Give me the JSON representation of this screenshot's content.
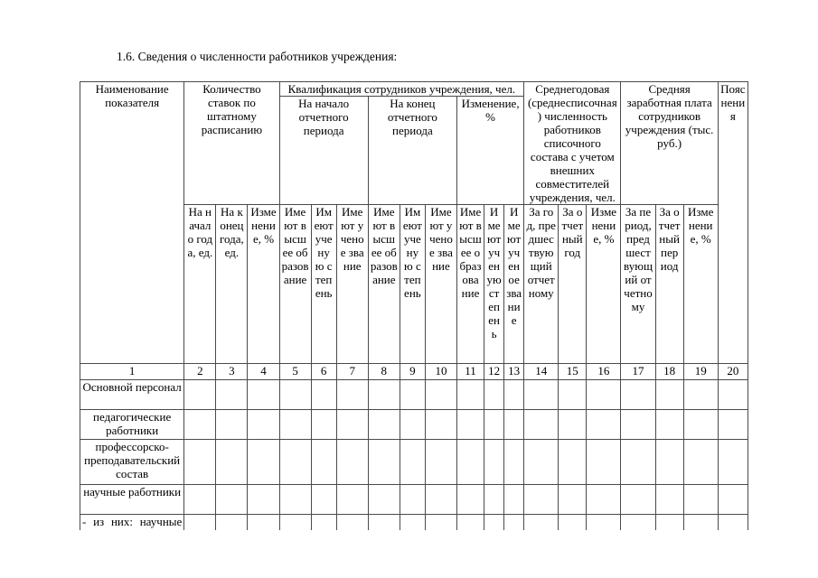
{
  "document": {
    "section_title": "1.6. Сведения о численности работников учреждения:"
  },
  "colors": {
    "background": "#ffffff",
    "text": "#000000",
    "table_border": "#4a4a4a"
  },
  "table": {
    "group_headers": {
      "indicator_name": "Наименование показателя",
      "staff_positions": "Количество ставок по штатному расписанию",
      "qualification": "Квалификация сотрудников учреждения, чел.",
      "qual_begin": "На начало отчетного периода",
      "qual_end": "На конец отчетного периода",
      "qual_change": "Изменение, %",
      "avg_headcount": "Среднегодовая (среднесписочная) численность работников списочного состава с учетом внешних совместителей учреждения, чел.",
      "avg_salary": "Средняя заработная плата сотрудников учреждения (тыс. руб.)",
      "explanations": "Пояснения"
    },
    "sub_headers": [
      "На начало года, ед.",
      "На конец года, ед.",
      "Изменение, %",
      "Имеют высшее образование",
      "Имеют ученую степень",
      "Имеют ученое звание",
      "Имеют высшее образование",
      "Имеют ученую степень",
      "Имеют ученое звание",
      "Имеют высшее образование",
      "Имеют ученую степень",
      "Имеют ученое звание",
      "За год, предшествующий отчетному",
      "За отчетный год",
      "Изменение, %",
      "За период, предшествующий отчетному",
      "За отчетный период",
      "Изменение, %"
    ],
    "column_numbers": [
      "1",
      "2",
      "3",
      "4",
      "5",
      "6",
      "7",
      "8",
      "9",
      "10",
      "11",
      "12",
      "13",
      "14",
      "15",
      "16",
      "17",
      "18",
      "19",
      "20"
    ],
    "rows": [
      {
        "label": "Основной персонал"
      },
      {
        "label": "педагогические работники"
      },
      {
        "label": "профессорско-преподавательский состав"
      },
      {
        "label": "научные работники"
      },
      {
        "label": "- из них: научные"
      }
    ]
  }
}
